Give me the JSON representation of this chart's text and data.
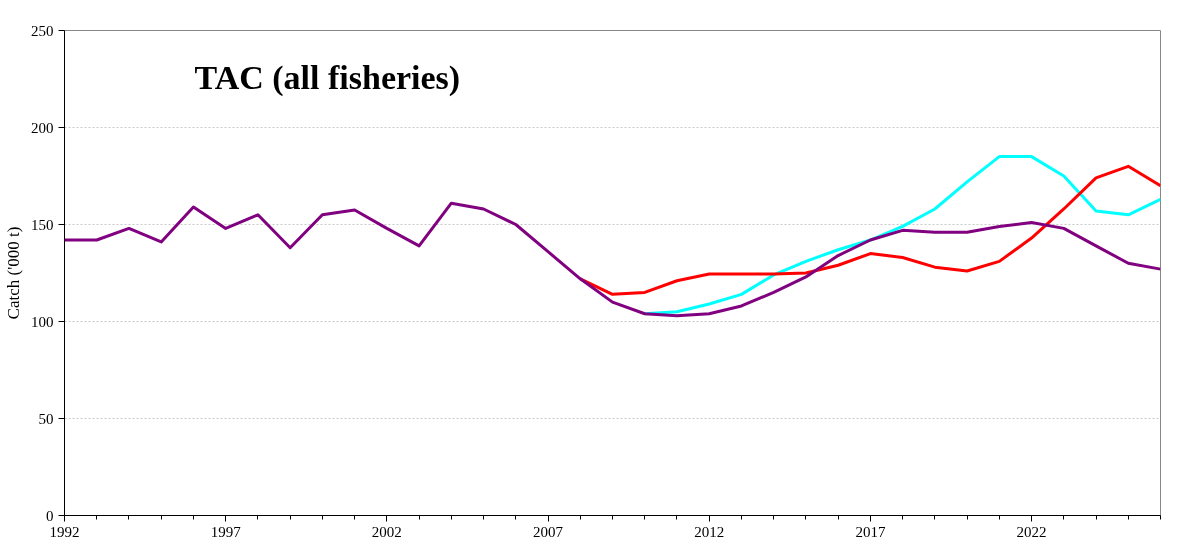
{
  "chart_data": {
    "type": "line",
    "title": "TAC (all fisheries)",
    "ylabel": "Catch ('000 t)",
    "xlim": [
      1992,
      2026
    ],
    "ylim": [
      0,
      250
    ],
    "xticks": [
      1992,
      {
        "value": 1993,
        "label": null
      },
      {
        "value": 1994,
        "label": null
      },
      {
        "value": 1995,
        "label": null
      },
      {
        "value": 1996,
        "label": null
      },
      1997,
      {
        "value": 1998,
        "label": null
      },
      {
        "value": 1999,
        "label": null
      },
      {
        "value": 2000,
        "label": null
      },
      {
        "value": 2001,
        "label": null
      },
      2002,
      {
        "value": 2003,
        "label": null
      },
      {
        "value": 2004,
        "label": null
      },
      {
        "value": 2005,
        "label": null
      },
      {
        "value": 2006,
        "label": null
      },
      2007,
      {
        "value": 2008,
        "label": null
      },
      {
        "value": 2009,
        "label": null
      },
      {
        "value": 2010,
        "label": null
      },
      {
        "value": 2011,
        "label": null
      },
      2012,
      {
        "value": 2013,
        "label": null
      },
      {
        "value": 2014,
        "label": null
      },
      {
        "value": 2015,
        "label": null
      },
      {
        "value": 2016,
        "label": null
      },
      2017,
      {
        "value": 2018,
        "label": null
      },
      {
        "value": 2019,
        "label": null
      },
      {
        "value": 2020,
        "label": null
      },
      {
        "value": 2021,
        "label": null
      },
      2022,
      {
        "value": 2023,
        "label": null
      },
      {
        "value": 2024,
        "label": null
      },
      {
        "value": 2025,
        "label": null
      },
      {
        "value": 2026,
        "label": null
      }
    ],
    "yticks": [
      0,
      50,
      100,
      150,
      200,
      250
    ],
    "grid": "y",
    "marker": "none",
    "line_style": "solid",
    "series": [
      {
        "color": "#00ffff",
        "x": [
          2010,
          2011,
          2012,
          2013,
          2014,
          2015,
          2016,
          2017,
          2018,
          2019,
          2020,
          2021,
          2022,
          2023,
          2024,
          2025,
          2026
        ],
        "values": [
          104,
          105,
          109,
          114,
          124,
          131,
          137,
          142,
          149,
          158,
          172,
          185,
          185,
          175,
          157,
          155,
          163
        ]
      },
      {
        "color": "#ff0000",
        "x": [
          2008,
          2009,
          2010,
          2011,
          2012,
          2013,
          2014,
          2015,
          2016,
          2017,
          2018,
          2019,
          2020,
          2021,
          2022,
          2023,
          2024,
          2025,
          2026
        ],
        "values": [
          122,
          114,
          115,
          121,
          124.5,
          124.5,
          124.5,
          125,
          129,
          135,
          133,
          128,
          126,
          131,
          143,
          158,
          174,
          180,
          170
        ]
      },
      {
        "color": "#800080",
        "x": [
          1992,
          1993,
          1994,
          1995,
          1996,
          1997,
          1998,
          1999,
          2000,
          2001,
          2002,
          2003,
          2004,
          2005,
          2006,
          2007,
          2008,
          2009,
          2010,
          2011,
          2012,
          2013,
          2014,
          2015,
          2016,
          2017,
          2018,
          2019,
          2020,
          2021,
          2022,
          2023,
          2024,
          2025,
          2026
        ],
        "values": [
          142,
          142,
          148,
          141,
          159,
          148,
          155,
          138,
          155,
          157.5,
          148,
          139,
          161,
          158,
          150,
          136,
          122,
          110,
          104,
          103,
          104,
          108,
          115,
          123,
          134,
          142,
          147,
          146,
          146,
          149,
          151,
          148,
          139,
          130,
          127
        ]
      }
    ]
  }
}
